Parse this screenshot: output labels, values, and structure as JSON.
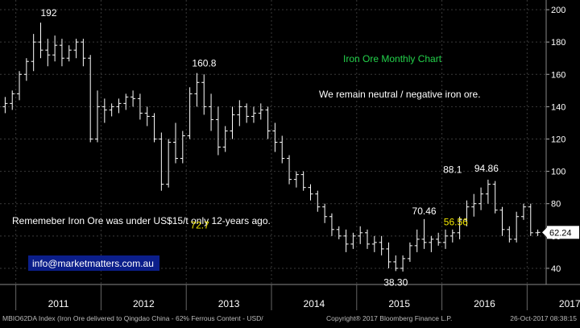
{
  "chart_data": {
    "type": "ohlc",
    "title": "Iron Ore Monthly Chart",
    "subtitle": "We remain neutral / negative iron ore.",
    "note": "Rememeber Iron Ore was under US$15/t only 12-years ago.",
    "contact": "info@marketmatters.com.au",
    "y_ticks": [
      40,
      60,
      80,
      100,
      120,
      140,
      160,
      180,
      200
    ],
    "ylim": [
      30,
      206
    ],
    "x_labels": [
      "2011",
      "2012",
      "2013",
      "2014",
      "2015",
      "2016",
      "2017"
    ],
    "last_value": "62.24",
    "annotations": [
      {
        "text": "192",
        "value": 192,
        "color": "#ffffff"
      },
      {
        "text": "160.8",
        "value": 160.8,
        "color": "#ffffff"
      },
      {
        "text": "72.7",
        "value": 72.7,
        "color": "#f2e600"
      },
      {
        "text": "88.1",
        "value": 88.1,
        "color": "#ffffff"
      },
      {
        "text": "70.46",
        "value": 70.46,
        "color": "#ffffff"
      },
      {
        "text": "94.86",
        "value": 94.86,
        "color": "#ffffff"
      },
      {
        "text": "56.56",
        "value": 56.56,
        "color": "#f2e600"
      },
      {
        "text": "38.30",
        "value": 38.3,
        "color": "#ffffff"
      }
    ],
    "series": [
      {
        "name": "MBIO62DA Index",
        "ohlc": [
          [
            140,
            146,
            136,
            142
          ],
          [
            142,
            150,
            138,
            148
          ],
          [
            148,
            162,
            144,
            160
          ],
          [
            160,
            170,
            156,
            168
          ],
          [
            168,
            185,
            162,
            180
          ],
          [
            180,
            192,
            170,
            175
          ],
          [
            175,
            182,
            165,
            172
          ],
          [
            172,
            184,
            168,
            178
          ],
          [
            178,
            182,
            165,
            170
          ],
          [
            170,
            178,
            168,
            175
          ],
          [
            175,
            182,
            170,
            180
          ],
          [
            180,
            182,
            165,
            170
          ],
          [
            170,
            172,
            118,
            120
          ],
          [
            120,
            150,
            118,
            140
          ],
          [
            140,
            145,
            130,
            138
          ],
          [
            138,
            142,
            134,
            140
          ],
          [
            140,
            145,
            136,
            142
          ],
          [
            142,
            148,
            138,
            146
          ],
          [
            146,
            150,
            140,
            145
          ],
          [
            145,
            148,
            132,
            136
          ],
          [
            136,
            140,
            128,
            134
          ],
          [
            134,
            136,
            118,
            120
          ],
          [
            120,
            124,
            88,
            92
          ],
          [
            92,
            120,
            90,
            118
          ],
          [
            118,
            130,
            105,
            108
          ],
          [
            108,
            125,
            105,
            122
          ],
          [
            122,
            152,
            120,
            148
          ],
          [
            148,
            160.8,
            140,
            155
          ],
          [
            155,
            160,
            135,
            140
          ],
          [
            140,
            148,
            125,
            132
          ],
          [
            132,
            140,
            110,
            115
          ],
          [
            115,
            128,
            112,
            125
          ],
          [
            125,
            140,
            120,
            135
          ],
          [
            135,
            144,
            128,
            140
          ],
          [
            140,
            142,
            130,
            134
          ],
          [
            134,
            140,
            130,
            136
          ],
          [
            136,
            142,
            132,
            138
          ],
          [
            138,
            140,
            120,
            125
          ],
          [
            125,
            130,
            112,
            118
          ],
          [
            118,
            122,
            105,
            108
          ],
          [
            108,
            110,
            92,
            95
          ],
          [
            95,
            100,
            90,
            98
          ],
          [
            98,
            100,
            88,
            90
          ],
          [
            90,
            92,
            82,
            86
          ],
          [
            86,
            88,
            75,
            78
          ],
          [
            78,
            80,
            68,
            72
          ],
          [
            72,
            74,
            60,
            64
          ],
          [
            64,
            66,
            58,
            60
          ],
          [
            60,
            64,
            50,
            55
          ],
          [
            55,
            62,
            52,
            60
          ],
          [
            60,
            66,
            55,
            62
          ],
          [
            62,
            64,
            52,
            55
          ],
          [
            55,
            60,
            50,
            56
          ],
          [
            56,
            60,
            48,
            52
          ],
          [
            52,
            56,
            40,
            44
          ],
          [
            44,
            48,
            38.3,
            40
          ],
          [
            40,
            48,
            38,
            46
          ],
          [
            46,
            56,
            44,
            54
          ],
          [
            54,
            64,
            50,
            58
          ],
          [
            58,
            70.46,
            52,
            56
          ],
          [
            56,
            60,
            50,
            58
          ],
          [
            58,
            62,
            54,
            56
          ],
          [
            56,
            64,
            52,
            60
          ],
          [
            60,
            64,
            56,
            62
          ],
          [
            62,
            72,
            58,
            70
          ],
          [
            70,
            82,
            66,
            78
          ],
          [
            78,
            86,
            72,
            80
          ],
          [
            80,
            90,
            76,
            86
          ],
          [
            86,
            94.86,
            80,
            92
          ],
          [
            92,
            94,
            74,
            76
          ],
          [
            76,
            78,
            60,
            64
          ],
          [
            64,
            66,
            56,
            58
          ],
          [
            58,
            75,
            56,
            72
          ],
          [
            72,
            80,
            70,
            78
          ],
          [
            78,
            80,
            60,
            62
          ],
          [
            62,
            64,
            60,
            62.24
          ]
        ]
      }
    ]
  },
  "footer": {
    "left": "MBIO62DA Index (Iron Ore delivered to Qingdao China - 62% Ferrous Content - USD/",
    "center": "Copyright® 2017 Bloomberg Finance L.P.",
    "right": "26-Oct-2017 08:38:15"
  }
}
